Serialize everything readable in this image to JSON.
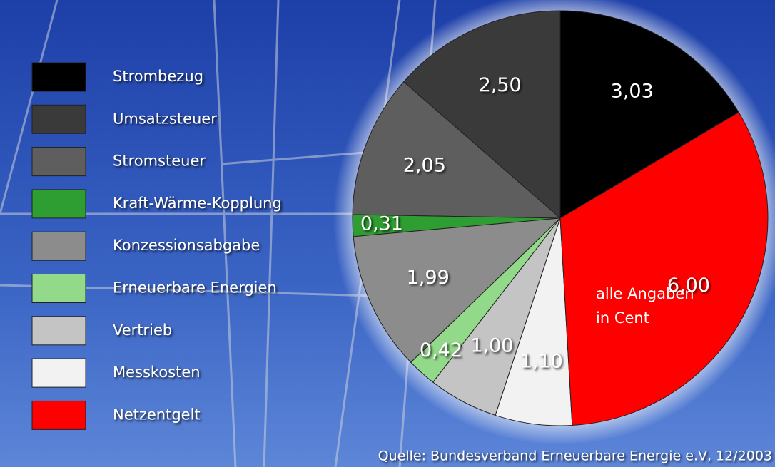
{
  "chart_data": {
    "type": "pie",
    "categories": [
      "Strombezug",
      "Umsatzsteuer",
      "Stromsteuer",
      "Kraft-Wärme-Kopplung",
      "Konzessionsabgabe",
      "Erneuerbare Energien",
      "Vertrieb",
      "Messkosten",
      "Netzentgelt"
    ],
    "values": [
      3.03,
      2.5,
      2.05,
      0.31,
      1.99,
      0.42,
      1.0,
      1.1,
      6.0
    ],
    "value_labels": [
      "3,03",
      "2,50",
      "2,05",
      "0,31",
      "1,99",
      "0,42",
      "1,00",
      "1,10",
      "6,00"
    ],
    "colors": [
      "#000000",
      "#3a3a3a",
      "#5e5e5e",
      "#2f9e32",
      "#8c8c8c",
      "#93d98a",
      "#c4c4c4",
      "#f2f2f2",
      "#ff0000"
    ],
    "annotation": [
      "alle Angaben",
      "in Cent"
    ],
    "source": "Quelle: Bundesverband Erneuerbare Energie e.V, 12/2003"
  }
}
